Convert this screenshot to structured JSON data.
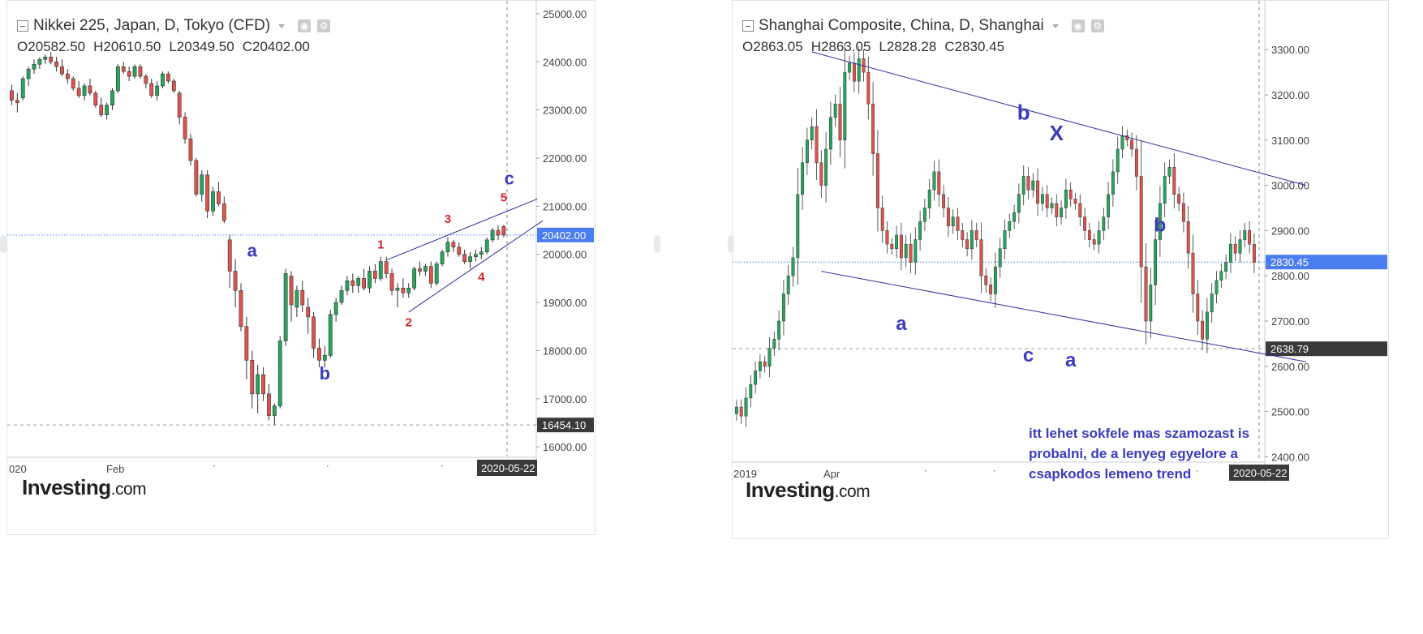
{
  "panels": [
    {
      "title": "Nikkei 225, Japan, D, Tokyo (CFD)",
      "ohlc": {
        "o": "20582.50",
        "h": "20610.50",
        "l": "20349.50",
        "c": "20402.00"
      },
      "logo": "Investing",
      "logo_suffix": ".com"
    },
    {
      "title": "Shanghai Composite, China, D, Shanghai",
      "ohlc": {
        "o": "2863.05",
        "h": "2863.05",
        "l": "2828.28",
        "c": "2830.45"
      },
      "logo": "Investing",
      "logo_suffix": ".com"
    }
  ],
  "annotation_text": "itt lehet sokfele mas szamozast is probalni, de a lenyeg egyelore a csapkodos lemeno trend",
  "colors": {
    "up": "#26a65b",
    "down": "#e0534c",
    "wave_blue": "#3b3bbf",
    "wave_red": "#d0252f",
    "price_tag": "#4a7df0",
    "dark_tag": "#3a3a3a"
  },
  "chart_data": [
    {
      "type": "candlestick",
      "title": "Nikkei 225, Japan, D, Tokyo (CFD)",
      "y_ticks": [
        "25000.00",
        "24000.00",
        "23000.00",
        "22000.00",
        "21000.00",
        "20000.00",
        "19000.00",
        "18000.00",
        "17000.00",
        "16000.00"
      ],
      "ylim": [
        15800,
        25100
      ],
      "x_ticks": [
        "020",
        "Feb"
      ],
      "last_date": "2020-05-22",
      "price_line": {
        "value": 20402,
        "label": "20402.00"
      },
      "low_line": {
        "value": 16454.1,
        "label": "16454.10"
      },
      "candles": [
        [
          23400,
          23520,
          23100,
          23200
        ],
        [
          23200,
          23350,
          22950,
          23150
        ],
        [
          23250,
          23700,
          23200,
          23650
        ],
        [
          23650,
          23900,
          23500,
          23850
        ],
        [
          23850,
          24050,
          23750,
          23950
        ],
        [
          23950,
          24100,
          23850,
          24050
        ],
        [
          24050,
          24150,
          23950,
          24100
        ],
        [
          24100,
          24200,
          23950,
          24000
        ],
        [
          24000,
          24100,
          23800,
          23900
        ],
        [
          23900,
          24050,
          23700,
          23750
        ],
        [
          23750,
          23850,
          23550,
          23650
        ],
        [
          23650,
          23700,
          23400,
          23450
        ],
        [
          23450,
          23600,
          23250,
          23300
        ],
        [
          23300,
          23550,
          23200,
          23500
        ],
        [
          23500,
          23650,
          23300,
          23350
        ],
        [
          23350,
          23400,
          23050,
          23100
        ],
        [
          23100,
          23250,
          22850,
          22900
        ],
        [
          22900,
          23150,
          22800,
          23100
        ],
        [
          23100,
          23450,
          23000,
          23400
        ],
        [
          23400,
          23950,
          23350,
          23900
        ],
        [
          23900,
          24000,
          23750,
          23800
        ],
        [
          23800,
          23900,
          23600,
          23700
        ],
        [
          23700,
          23950,
          23650,
          23900
        ],
        [
          23900,
          23950,
          23650,
          23700
        ],
        [
          23700,
          23750,
          23450,
          23550
        ],
        [
          23550,
          23650,
          23250,
          23300
        ],
        [
          23300,
          23600,
          23200,
          23500
        ],
        [
          23500,
          23800,
          23450,
          23750
        ],
        [
          23750,
          23800,
          23550,
          23600
        ],
        [
          23600,
          23650,
          23350,
          23400
        ],
        [
          23350,
          23400,
          22700,
          22850
        ],
        [
          22850,
          22950,
          22300,
          22400
        ],
        [
          22400,
          22500,
          21850,
          21950
        ],
        [
          21950,
          22000,
          21200,
          21250
        ],
        [
          21250,
          21750,
          21100,
          21650
        ],
        [
          21650,
          21750,
          20750,
          20900
        ],
        [
          20900,
          21400,
          20800,
          21300
        ],
        [
          21300,
          21500,
          21000,
          21050
        ],
        [
          21050,
          21200,
          20650,
          20700
        ],
        [
          20300,
          20400,
          19300,
          19650
        ],
        [
          19650,
          19900,
          18900,
          19250
        ],
        [
          19250,
          19400,
          18400,
          18500
        ],
        [
          18500,
          18700,
          17400,
          17800
        ],
        [
          17800,
          18000,
          16800,
          17100
        ],
        [
          17100,
          17700,
          16700,
          17500
        ],
        [
          17500,
          17650,
          16950,
          17100
        ],
        [
          17100,
          17300,
          16550,
          16650
        ],
        [
          16650,
          16900,
          16450,
          16850
        ],
        [
          16850,
          18300,
          16800,
          18200
        ],
        [
          18200,
          19700,
          18100,
          19600
        ],
        [
          19550,
          19650,
          18600,
          18950
        ],
        [
          18900,
          19350,
          18700,
          19250
        ],
        [
          19250,
          19450,
          18800,
          18950
        ],
        [
          18900,
          19100,
          18350,
          18700
        ],
        [
          18700,
          18800,
          17850,
          18050
        ],
        [
          18050,
          18250,
          17650,
          17800
        ],
        [
          17800,
          18100,
          17650,
          17900
        ],
        [
          17900,
          18850,
          17850,
          18750
        ],
        [
          18750,
          19100,
          18600,
          19000
        ],
        [
          19000,
          19350,
          18950,
          19250
        ],
        [
          19250,
          19550,
          19150,
          19450
        ],
        [
          19450,
          19600,
          19200,
          19350
        ],
        [
          19350,
          19550,
          19200,
          19500
        ],
        [
          19500,
          19700,
          19250,
          19300
        ],
        [
          19300,
          19750,
          19200,
          19650
        ],
        [
          19650,
          19800,
          19400,
          19500
        ],
        [
          19500,
          19950,
          19450,
          19850
        ],
        [
          19850,
          19950,
          19500,
          19600
        ],
        [
          19600,
          19700,
          19150,
          19250
        ],
        [
          19250,
          19400,
          18900,
          19300
        ],
        [
          19300,
          19500,
          19100,
          19200
        ],
        [
          19200,
          19400,
          19100,
          19300
        ],
        [
          19300,
          19750,
          19250,
          19700
        ],
        [
          19700,
          19850,
          19550,
          19650
        ],
        [
          19650,
          19800,
          19550,
          19750
        ],
        [
          19750,
          19850,
          19300,
          19400
        ],
        [
          19400,
          19850,
          19350,
          19800
        ],
        [
          19800,
          20100,
          19750,
          20050
        ],
        [
          20050,
          20350,
          19950,
          20250
        ],
        [
          20250,
          20300,
          20050,
          20150
        ],
        [
          20150,
          20250,
          19950,
          20000
        ],
        [
          20000,
          20100,
          19800,
          19850
        ],
        [
          19850,
          20050,
          19700,
          19950
        ],
        [
          19950,
          20100,
          19850,
          20000
        ],
        [
          20000,
          20150,
          19900,
          20050
        ],
        [
          20050,
          20350,
          20000,
          20300
        ],
        [
          20300,
          20550,
          20250,
          20500
        ],
        [
          20500,
          20600,
          20300,
          20400
        ],
        [
          20582.5,
          20610.5,
          20349.5,
          20402
        ]
      ],
      "labels": [
        {
          "text": "a",
          "x": 43,
          "y": 19950,
          "color": "wave_blue",
          "size": 22
        },
        {
          "text": "b",
          "x": 56,
          "y": 17400,
          "color": "wave_blue",
          "size": 22
        },
        {
          "text": "c",
          "x": 89,
          "y": 21450,
          "color": "wave_blue",
          "size": 22
        },
        {
          "text": "1",
          "x": 66,
          "y": 20120,
          "color": "wave_red",
          "size": 15
        },
        {
          "text": "2",
          "x": 71,
          "y": 18500,
          "color": "wave_red",
          "size": 15
        },
        {
          "text": "3",
          "x": 78,
          "y": 20650,
          "color": "wave_red",
          "size": 15
        },
        {
          "text": "4",
          "x": 84,
          "y": 19450,
          "color": "wave_red",
          "size": 15
        },
        {
          "text": "5",
          "x": 88,
          "y": 21100,
          "color": "wave_red",
          "size": 15
        }
      ],
      "trendlines": [
        {
          "x1": 67,
          "y1": 19880,
          "x2": 94,
          "y2": 21150
        },
        {
          "x1": 71,
          "y1": 18800,
          "x2": 95,
          "y2": 20700
        }
      ]
    },
    {
      "type": "candlestick",
      "title": "Shanghai Composite, China, D, Shanghai",
      "y_ticks": [
        "3300.00",
        "3200.00",
        "3100.00",
        "3000.00",
        "2900.00",
        "2800.00",
        "2700.00",
        "2600.00",
        "2500.00",
        "2400.00"
      ],
      "ylim": [
        2390,
        3390
      ],
      "x_ticks": [
        "2019",
        "Apr"
      ],
      "last_date": "2020-05-22",
      "price_line": {
        "value": 2830.45,
        "label": "2830.45"
      },
      "low_line": {
        "value": 2638.79,
        "label": "2638.79"
      },
      "series_close": [
        2510,
        2490,
        2530,
        2560,
        2590,
        2610,
        2600,
        2640,
        2660,
        2700,
        2760,
        2800,
        2840,
        2980,
        3050,
        3100,
        3130,
        3050,
        3000,
        3080,
        3150,
        3180,
        3100,
        3250,
        3270,
        3230,
        3280,
        3250,
        3180,
        3070,
        2950,
        2900,
        2870,
        2860,
        2890,
        2840,
        2870,
        2830,
        2880,
        2920,
        2950,
        2990,
        3030,
        2980,
        2950,
        2910,
        2930,
        2900,
        2880,
        2860,
        2900,
        2880,
        2800,
        2780,
        2760,
        2820,
        2860,
        2900,
        2920,
        2940,
        2980,
        3020,
        2990,
        3010,
        2960,
        2980,
        2950,
        2960,
        2930,
        2950,
        2990,
        2970,
        2960,
        2930,
        2900,
        2880,
        2870,
        2900,
        2930,
        2980,
        3030,
        3080,
        3110,
        3100,
        3080,
        3020,
        2820,
        2700,
        2780,
        2880,
        2960,
        3020,
        3040,
        2980,
        2960,
        2920,
        2850,
        2760,
        2700,
        2660,
        2720,
        2760,
        2790,
        2810,
        2830,
        2870,
        2850,
        2880,
        2900,
        2870,
        2830
      ],
      "labels": [
        {
          "text": "b",
          "x": 61,
          "y": 3145,
          "color": "wave_blue",
          "size": 26
        },
        {
          "text": "X",
          "x": 68,
          "y": 3100,
          "color": "wave_blue",
          "size": 26
        },
        {
          "text": "a",
          "x": 35,
          "y": 2680,
          "color": "wave_blue",
          "size": 24
        },
        {
          "text": "c",
          "x": 62,
          "y": 2610,
          "color": "wave_blue",
          "size": 24
        },
        {
          "text": "a",
          "x": 71,
          "y": 2600,
          "color": "wave_blue",
          "size": 24
        },
        {
          "text": "b",
          "x": 90,
          "y": 2898,
          "color": "wave_blue",
          "size": 24
        }
      ],
      "trendlines": [
        {
          "x1": 16,
          "y1": 3295,
          "x2": 121,
          "y2": 3000
        },
        {
          "x1": 18,
          "y1": 2810,
          "x2": 121,
          "y2": 2610
        }
      ]
    }
  ]
}
